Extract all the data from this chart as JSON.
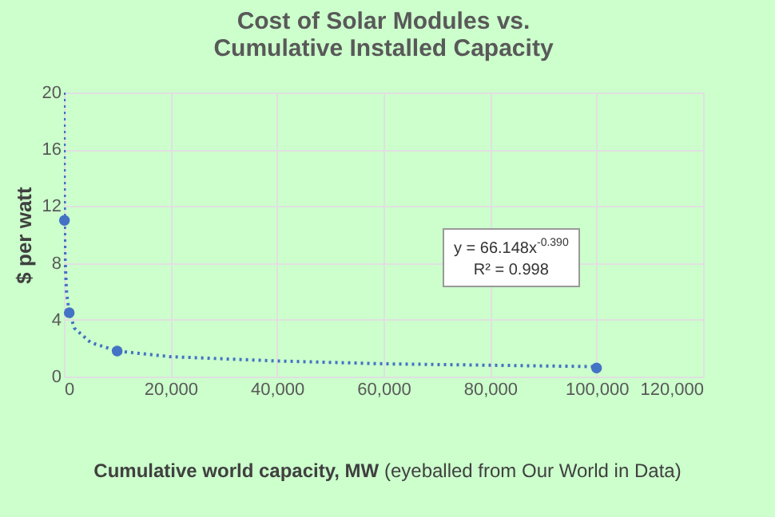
{
  "chart_data": {
    "type": "scatter",
    "title": "Cost of Solar Modules vs.\nCumulative Installed Capacity",
    "xlabel": "Cumulative world capacity, MW (eyeballed from Our World in Data)",
    "ylabel": "$ per watt",
    "series": [
      {
        "color": "#4472c4",
        "marker": "circle",
        "x": [
          100,
          1000,
          10000,
          100000
        ],
        "values": [
          11,
          4.5,
          1.8,
          0.6
        ]
      },
      {
        "type": "line",
        "color": "#4472c4",
        "line_style": "dotted",
        "x": [
          21.5,
          50,
          100,
          200,
          500,
          1000,
          2000,
          5000,
          10000,
          20000,
          40000,
          60000,
          80000,
          100000
        ],
        "values": [
          20,
          14.4,
          11,
          8.4,
          5.9,
          4.5,
          3.4,
          2.4,
          1.8,
          1.4,
          1.1,
          0.9,
          0.8,
          0.7
        ]
      }
    ],
    "annotations": [
      "y = 66.148x$^{-0.390}$",
      "R² = 0.998"
    ],
    "xlim": [
      0,
      120000
    ],
    "xticks": [
      {
        "value": 0,
        "label": "0"
      },
      {
        "value": 20000,
        "label": "20,000"
      },
      {
        "value": 40000,
        "label": "40,000"
      },
      {
        "value": 60000,
        "label": "60,000"
      },
      {
        "value": 80000,
        "label": "80,000"
      },
      {
        "value": 100000,
        "label": "100,000"
      },
      {
        "value": 120000,
        "label": "120,000"
      }
    ],
    "ylim": [
      0,
      20
    ],
    "yticks": [
      0,
      4,
      8,
      12,
      16,
      20
    ],
    "grid": true
  }
}
